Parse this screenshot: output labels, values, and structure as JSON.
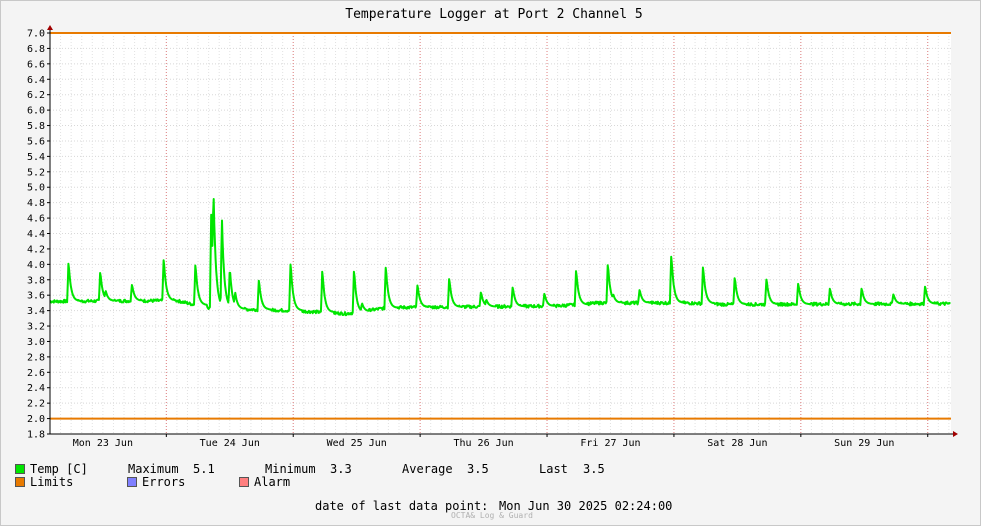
{
  "chart_data": {
    "type": "line",
    "title": "Temperature Logger at Port 2 Channel 5",
    "ylim": [
      1.8,
      7.0
    ],
    "y_ticks": [
      "7.0",
      "6.8",
      "6.6",
      "6.4",
      "6.2",
      "6.0",
      "5.8",
      "5.6",
      "5.4",
      "5.2",
      "5.0",
      "4.8",
      "4.6",
      "4.4",
      "4.2",
      "4.0",
      "3.8",
      "3.6",
      "3.4",
      "3.2",
      "3.0",
      "2.8",
      "2.6",
      "2.4",
      "2.2",
      "2.0",
      "1.8"
    ],
    "x_labels": [
      "Mon 23 Jun",
      "Tue 24 Jun",
      "Wed 25 Jun",
      "Thu 26 Jun",
      "Fri 27 Jun",
      "Sat 28 Jun",
      "Sun 29 Jun"
    ],
    "x_range_hours": [
      0,
      170.4
    ],
    "limits": [
      2.0,
      7.0
    ],
    "grid": true,
    "colors": {
      "temp": "#00e600",
      "limits": "#e87a00",
      "errors": "#7f7fff",
      "alarm": "#ff7f7f"
    },
    "series": [
      {
        "name": "Temp [C]",
        "baseline": [
          [
            0,
            3.52
          ],
          [
            24,
            3.53
          ],
          [
            30,
            3.43
          ],
          [
            46,
            3.4
          ],
          [
            56,
            3.36
          ],
          [
            64,
            3.44
          ],
          [
            96,
            3.46
          ],
          [
            104,
            3.5
          ],
          [
            120,
            3.5
          ],
          [
            128,
            3.48
          ],
          [
            170.4,
            3.49
          ]
        ],
        "spikes": [
          [
            3.5,
            4.05
          ],
          [
            9.5,
            3.92
          ],
          [
            10.5,
            3.67
          ],
          [
            15.5,
            3.75
          ],
          [
            21.5,
            4.1
          ],
          [
            27.5,
            4.03
          ],
          [
            30.5,
            4.75
          ],
          [
            30.9,
            5.05
          ],
          [
            32.5,
            4.62
          ],
          [
            34,
            3.98
          ],
          [
            35,
            3.65
          ],
          [
            39.5,
            3.82
          ],
          [
            45.5,
            4.05
          ],
          [
            51.5,
            3.95
          ],
          [
            57.5,
            3.95
          ],
          [
            59,
            3.5
          ],
          [
            63.5,
            4.0
          ],
          [
            69.5,
            3.75
          ],
          [
            75.5,
            3.84
          ],
          [
            81.5,
            3.65
          ],
          [
            82.5,
            3.55
          ],
          [
            87.5,
            3.72
          ],
          [
            93.5,
            3.63
          ],
          [
            99.5,
            3.95
          ],
          [
            105.5,
            4.03
          ],
          [
            106.5,
            3.62
          ],
          [
            111.5,
            3.68
          ],
          [
            117.5,
            4.15
          ],
          [
            123.5,
            4.0
          ],
          [
            129.5,
            3.85
          ],
          [
            135.5,
            3.83
          ],
          [
            141.5,
            3.77
          ],
          [
            147.5,
            3.7
          ],
          [
            153.5,
            3.7
          ],
          [
            159.5,
            3.62
          ],
          [
            165.5,
            3.73
          ]
        ]
      }
    ]
  },
  "legend": {
    "temp_label": "Temp [C]",
    "maximum_label": "Maximum",
    "maximum_value": "5.1",
    "minimum_label": "Minimum",
    "minimum_value": "3.3",
    "average_label": "Average",
    "average_value": "3.5",
    "last_label": "Last",
    "last_value": "3.5",
    "limits_label": "Limits",
    "errors_label": "Errors",
    "alarm_label": "Alarm"
  },
  "footer": {
    "last_point_label": "date of last data point:",
    "last_point_value": "Mon Jun 30 2025 02:24:00",
    "credit": "OCTA& Log & Guard"
  }
}
